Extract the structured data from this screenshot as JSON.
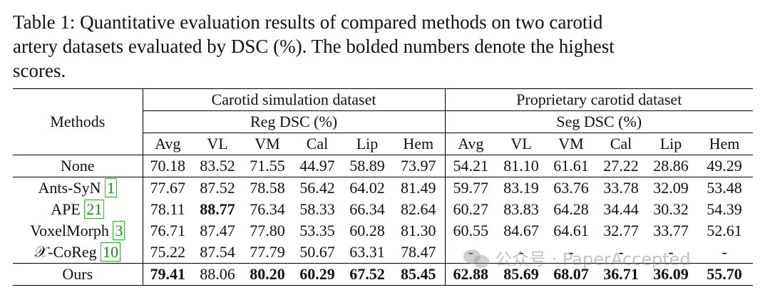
{
  "caption": {
    "line1": "Table 1: Quantitative evaluation results of compared methods on two carotid",
    "line2": "artery datasets evaluated by DSC (%). The bolded numbers denote the highest",
    "line3": "scores."
  },
  "table": {
    "methods_header": "Methods",
    "group1": {
      "title": "Carotid simulation dataset",
      "metric": "Reg DSC (%)"
    },
    "group2": {
      "title": "Proprietary carotid dataset",
      "metric": "Seg DSC (%)"
    },
    "columns": [
      "Avg",
      "VL",
      "VM",
      "Cal",
      "Lip",
      "Hem"
    ],
    "rows": [
      {
        "method": "None",
        "ref": "",
        "g1": [
          "70.18",
          "83.52",
          "71.55",
          "44.97",
          "58.89",
          "73.97"
        ],
        "g2": [
          "54.21",
          "81.10",
          "61.61",
          "27.22",
          "28.86",
          "49.29"
        ]
      },
      {
        "method": "Ants-SyN",
        "ref": "1",
        "g1": [
          "77.67",
          "87.52",
          "78.58",
          "56.42",
          "64.02",
          "81.49"
        ],
        "g2": [
          "59.77",
          "83.19",
          "63.76",
          "33.78",
          "32.09",
          "53.48"
        ]
      },
      {
        "method": "APE",
        "ref": "21",
        "g1": [
          "78.11",
          "88.77",
          "76.34",
          "58.33",
          "66.34",
          "82.64"
        ],
        "g2": [
          "60.27",
          "83.83",
          "64.28",
          "34.44",
          "30.32",
          "54.39"
        ]
      },
      {
        "method": "VoxelMorph",
        "ref": "3",
        "g1": [
          "76.71",
          "87.47",
          "77.80",
          "53.35",
          "60.28",
          "81.30"
        ],
        "g2": [
          "60.55",
          "84.67",
          "64.61",
          "32.77",
          "33.77",
          "52.61"
        ]
      },
      {
        "method": "𝒳-CoReg",
        "ref": "10",
        "g1": [
          "75.22",
          "87.54",
          "77.79",
          "50.67",
          "63.31",
          "78.47"
        ],
        "g2": [
          "-",
          "-",
          "-",
          "-",
          "-",
          "-"
        ]
      },
      {
        "method": "Ours",
        "ref": "",
        "g1": [
          "79.41",
          "88.06",
          "80.20",
          "60.29",
          "67.52",
          "85.45"
        ],
        "g2": [
          "62.88",
          "85.69",
          "68.07",
          "36.71",
          "36.09",
          "55.70"
        ]
      }
    ]
  },
  "watermark": "公众号 · PaperAccepted"
}
